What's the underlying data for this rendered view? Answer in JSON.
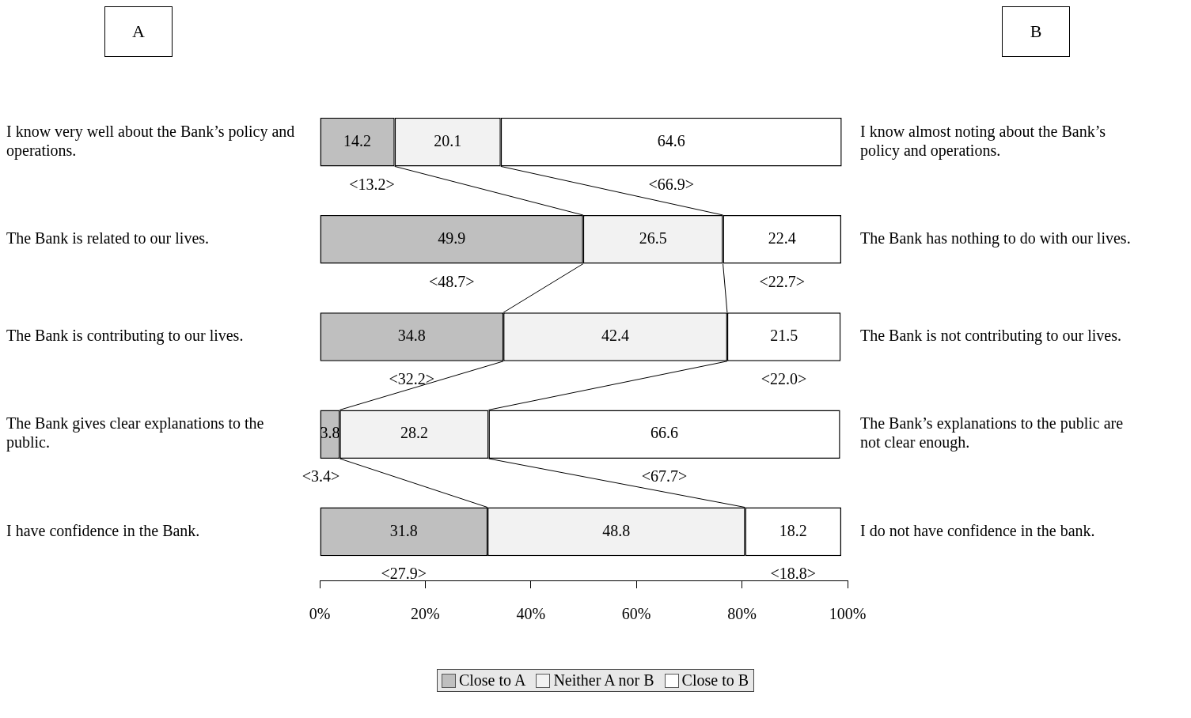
{
  "chart_data": {
    "type": "bar",
    "orientation": "horizontal",
    "stacked": true,
    "data_labels": true,
    "legend": "bottom",
    "categories": [
      "I know very well about the Bank’s policy and operations.",
      "The Bank is related to our lives.",
      "The Bank is contributing to our lives.",
      "The Bank gives clear explanations to the public.",
      "I have confidence in the Bank."
    ],
    "y2_categories": [
      "I know almost noting about the Bank’s policy and operations.",
      "The Bank has nothing to do with our lives.",
      "The Bank is not contributing to our lives.",
      "The Bank’s explanations to the public are not clear enough.",
      "I do not have confidence in the bank."
    ],
    "series": [
      {
        "name": "Close to A",
        "color": "#bfbfbf",
        "values": [
          14.2,
          49.9,
          34.8,
          3.8,
          31.8
        ]
      },
      {
        "name": "Neither A nor B",
        "color": "#f2f2f2",
        "values": [
          20.1,
          26.5,
          42.4,
          28.2,
          48.8
        ]
      },
      {
        "name": "Close to B",
        "color": "#ffffff",
        "values": [
          64.6,
          22.4,
          21.5,
          66.6,
          18.2
        ]
      }
    ],
    "xlim": [
      0,
      100
    ],
    "xticks": [
      {
        "value": 0,
        "label": "0%"
      },
      {
        "value": 20,
        "label": "20%"
      },
      {
        "value": 40,
        "label": "40%"
      },
      {
        "value": 60,
        "label": "60%"
      },
      {
        "value": 80,
        "label": "80%"
      },
      {
        "value": 100,
        "label": "100%"
      }
    ],
    "annotations": [
      "A",
      "B",
      {
        "text": "<13.2>",
        "x": 14.2,
        "y": "I know very well about the Bank’s policy and operations."
      },
      "<66.9>",
      "<48.7>",
      "<22.7>",
      "<32.2>",
      "<22.0>",
      {
        "text": "<3.4>",
        "x": 3.8,
        "y": "The Bank gives clear explanations to the public."
      },
      "<67.7>",
      "<27.9>",
      "<18.8>"
    ]
  }
}
